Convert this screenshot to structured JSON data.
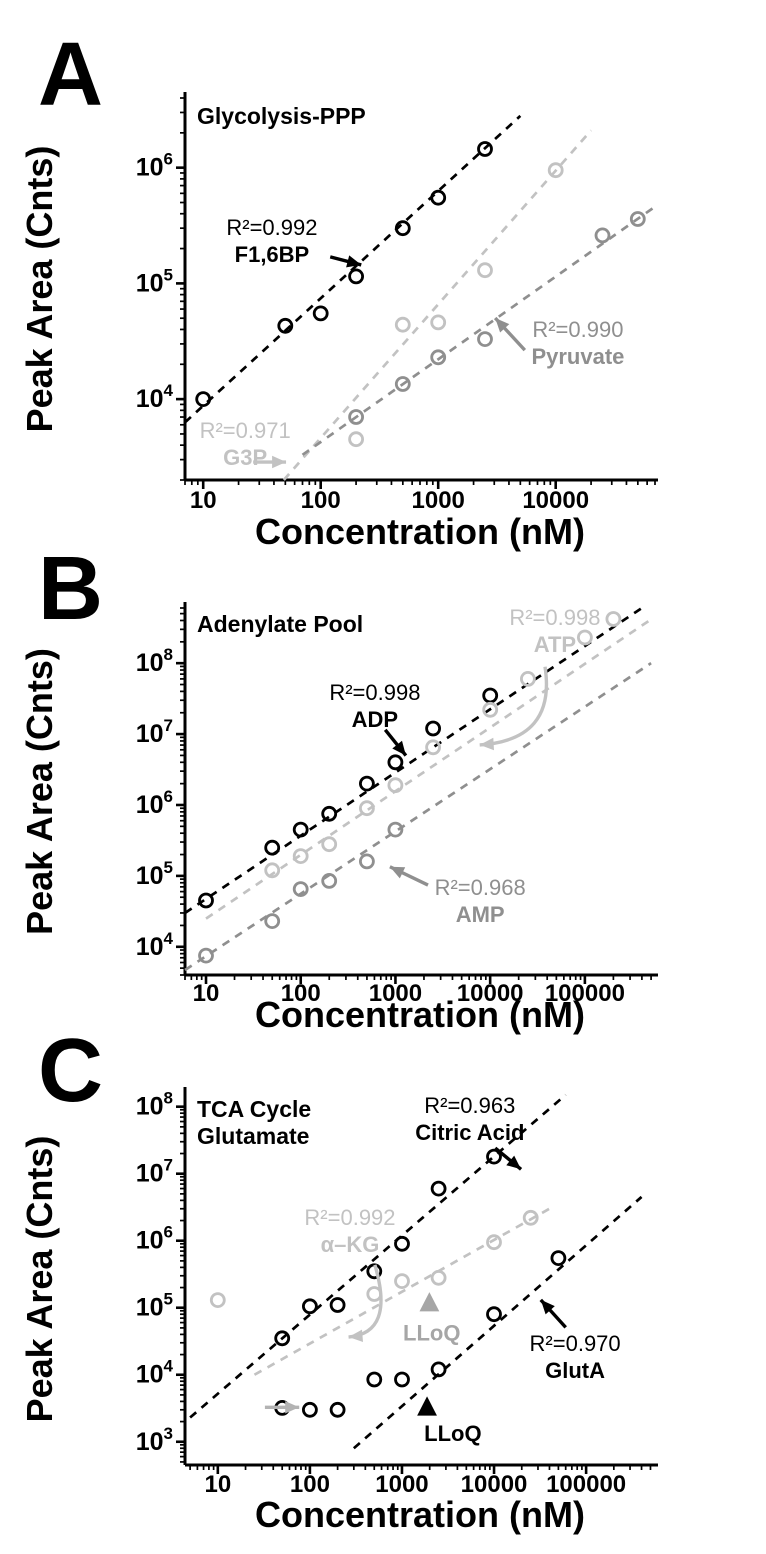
{
  "figure": {
    "background": "#ffffff",
    "colors": {
      "black": "#000000",
      "light_gray": "#c2c2c2",
      "mid_gray": "#8f8f8f",
      "lloq_gray": "#a6a6a6"
    }
  },
  "chart_data": [
    {
      "type": "scatter",
      "label": "A",
      "title_lines": [
        "Glycolysis-PPP"
      ],
      "xlabel": "Concentration (nM)",
      "ylabel": "Peak Area (Cnts)",
      "x_axis": {
        "scale": "log",
        "min": 7,
        "max": 70000,
        "tick_values": [
          10,
          100,
          1000,
          10000
        ]
      },
      "y_axis": {
        "scale": "log",
        "min": 2000,
        "max": 4000000,
        "tick_values": [
          10000,
          100000,
          1000000
        ]
      },
      "series": [
        {
          "name": "F1,6BP",
          "r2": 0.992,
          "color": "#000000",
          "points": [
            [
              10,
              10000
            ],
            [
              50,
              43000
            ],
            [
              100,
              55000
            ],
            [
              200,
              115000
            ],
            [
              500,
              300000
            ],
            [
              1000,
              550000
            ],
            [
              2500,
              1450000
            ]
          ],
          "trend": [
            [
              7,
              6300
            ],
            [
              5000,
              2800000
            ]
          ]
        },
        {
          "name": "G3P",
          "r2": 0.971,
          "color": "#c2c2c2",
          "points": [
            [
              200,
              4500
            ],
            [
              500,
              44000
            ],
            [
              1000,
              46000
            ],
            [
              2500,
              130000
            ],
            [
              10000,
              950000
            ]
          ],
          "trend": [
            [
              40,
              1600
            ],
            [
              20000,
              2100000
            ]
          ]
        },
        {
          "name": "Pyruvate",
          "r2": 0.99,
          "color": "#8f8f8f",
          "points": [
            [
              200,
              7000
            ],
            [
              500,
              13500
            ],
            [
              1000,
              23000
            ],
            [
              2500,
              33000
            ],
            [
              25000,
              260000
            ],
            [
              50000,
              360000
            ]
          ],
          "trend": [
            [
              70,
              3300
            ],
            [
              70000,
              460000
            ]
          ]
        }
      ],
      "annotations": [
        {
          "lines": [
            "R²=0.992",
            "F1,6BP"
          ],
          "color": "#000000",
          "fx": 0.185,
          "fy": 0.359,
          "arrow": {
            "from": [
              0.309,
              0.416
            ],
            "to": [
              0.375,
              0.437
            ]
          }
        },
        {
          "lines": [
            "R²=0.990",
            "Pyruvate"
          ],
          "color": "#8f8f8f",
          "fx": 0.836,
          "fy": 0.626,
          "arrow": {
            "from": [
              0.723,
              0.66
            ],
            "to": [
              0.66,
              0.576
            ]
          }
        },
        {
          "lines": [
            "R²=0.971",
            "G3P"
          ],
          "color": "#c2c2c2",
          "fx": 0.128,
          "fy": 0.89,
          "arrow": {
            "from": [
              0.145,
              0.953
            ],
            "to": [
              0.215,
              0.953
            ]
          }
        }
      ],
      "markers": []
    },
    {
      "type": "scatter",
      "label": "B",
      "title_lines": [
        "Adenylate Pool"
      ],
      "xlabel": "Concentration (nM)",
      "ylabel": "Peak Area (Cnts)",
      "x_axis": {
        "scale": "log",
        "min": 6,
        "max": 550000,
        "tick_values": [
          10,
          100,
          1000,
          10000,
          100000
        ]
      },
      "y_axis": {
        "scale": "log",
        "min": 4000,
        "max": 600000000,
        "tick_values": [
          10000,
          100000,
          1000000,
          10000000,
          100000000
        ]
      },
      "series": [
        {
          "name": "ADP",
          "r2": 0.998,
          "color": "#000000",
          "points": [
            [
              10,
              45000
            ],
            [
              50,
              250000
            ],
            [
              100,
              450000
            ],
            [
              200,
              750000
            ],
            [
              500,
              2000000
            ],
            [
              1000,
              4000000
            ],
            [
              2500,
              12000000
            ],
            [
              10000,
              35000000
            ]
          ],
          "trend": [
            [
              6,
              30000
            ],
            [
              400000,
              600000000
            ]
          ]
        },
        {
          "name": "ATP",
          "r2": 0.998,
          "color": "#c2c2c2",
          "points": [
            [
              50,
              120000
            ],
            [
              100,
              190000
            ],
            [
              200,
              280000
            ],
            [
              500,
              900000
            ],
            [
              1000,
              1900000
            ],
            [
              2500,
              6500000
            ],
            [
              10000,
              22000000
            ],
            [
              25000,
              60000000
            ],
            [
              100000,
              230000000
            ],
            [
              200000,
              420000000
            ]
          ],
          "trend": [
            [
              10,
              25000
            ],
            [
              480000,
              400000000
            ]
          ]
        },
        {
          "name": "AMP",
          "r2": 0.968,
          "color": "#8f8f8f",
          "points": [
            [
              10,
              7500
            ],
            [
              50,
              23000
            ],
            [
              100,
              65000
            ],
            [
              200,
              85000
            ],
            [
              500,
              160000
            ],
            [
              1000,
              450000
            ]
          ],
          "trend": [
            [
              6,
              4700
            ],
            [
              500000,
              100000000
            ]
          ]
        }
      ],
      "annotations": [
        {
          "lines": [
            "R²=0.998",
            "ATP"
          ],
          "color": "#c2c2c2",
          "fx": 0.787,
          "fy": 0.046,
          "arrow": {
            "from": [
              0.766,
              0.16
            ],
            "via": [
              0.79,
              0.36
            ],
            "to": [
              0.627,
              0.373
            ]
          }
        },
        {
          "lines": [
            "R²=0.998",
            "ADP"
          ],
          "color": "#000000",
          "fx": 0.404,
          "fy": 0.251,
          "arrow": {
            "from": [
              0.426,
              0.332
            ],
            "to": [
              0.47,
              0.402
            ]
          }
        },
        {
          "lines": [
            "R²=0.968",
            "AMP"
          ],
          "color": "#8f8f8f",
          "fx": 0.628,
          "fy": 0.782,
          "arrow": {
            "from": [
              0.517,
              0.755
            ],
            "to": [
              0.436,
              0.705
            ]
          }
        }
      ],
      "markers": []
    },
    {
      "type": "scatter",
      "label": "C",
      "title_lines": [
        "TCA Cycle",
        "Glutamate"
      ],
      "xlabel": "Concentration (nM)",
      "ylabel": "Peak Area (Cnts)",
      "x_axis": {
        "scale": "log",
        "min": 4.4,
        "max": 560000,
        "tick_values": [
          10,
          100,
          1000,
          10000,
          100000
        ]
      },
      "y_axis": {
        "scale": "log",
        "min": 450,
        "max": 160000000,
        "tick_values": [
          1000,
          10000,
          100000,
          1000000,
          10000000,
          100000000
        ]
      },
      "series": [
        {
          "name": "Citric Acid",
          "r2": 0.963,
          "color": "#000000",
          "points": [
            [
              50,
              35000
            ],
            [
              100,
              105000
            ],
            [
              200,
              110000
            ],
            [
              500,
              350000
            ],
            [
              1000,
              900000
            ],
            [
              2500,
              6000000
            ],
            [
              10000,
              18000000
            ]
          ],
          "trend": [
            [
              5,
              2300
            ],
            [
              60000,
              150000000
            ]
          ]
        },
        {
          "name": "α–KG",
          "r2": 0.992,
          "color": "#c2c2c2",
          "points": [
            [
              10,
              130000
            ],
            [
              500,
              160000
            ],
            [
              1000,
              250000
            ],
            [
              2500,
              280000
            ],
            [
              10000,
              950000
            ],
            [
              25000,
              2200000
            ]
          ],
          "trend": [
            [
              25,
              10000
            ],
            [
              40000,
              3000000
            ]
          ]
        },
        {
          "name": "GlutA",
          "r2": 0.97,
          "color": "#000000",
          "points": [
            [
              50,
              3200
            ],
            [
              100,
              3000
            ],
            [
              200,
              3000
            ],
            [
              500,
              8500
            ],
            [
              1000,
              8500
            ],
            [
              2500,
              12000
            ],
            [
              10000,
              80000
            ],
            [
              50000,
              550000
            ]
          ],
          "trend": [
            [
              300,
              800
            ],
            [
              400000,
              4500000
            ]
          ]
        }
      ],
      "annotations": [
        {
          "lines": [
            "R²=0.963",
            "Citric Acid"
          ],
          "color": "#000000",
          "fx": 0.606,
          "fy": 0.054,
          "arrow": {
            "from": [
              0.66,
              0.148
            ],
            "to": [
              0.715,
              0.205
            ]
          }
        },
        {
          "lines": [
            "R²=0.992",
            "α–KG"
          ],
          "color": "#c2c2c2",
          "fx": 0.351,
          "fy": 0.355,
          "arrow": {
            "from": [
              0.404,
              0.462
            ],
            "via": [
              0.447,
              0.645
            ],
            "to": [
              0.348,
              0.656
            ]
          }
        },
        {
          "lines": [
            "LLoQ"
          ],
          "color": "#a6a6a6",
          "fx": 0.525,
          "fy": 0.665
        },
        {
          "lines": [
            "R²=0.970",
            "GlutA"
          ],
          "color": "#000000",
          "fx": 0.83,
          "fy": 0.694,
          "arrow": {
            "from": [
              0.81,
              0.63
            ],
            "to": [
              0.757,
              0.556
            ]
          }
        },
        {
          "lines": [
            "LLoQ"
          ],
          "color": "#000000",
          "fx": 0.57,
          "fy": 0.935
        },
        {
          "lines": [],
          "color": "#b3b3b3",
          "fx": 0.2,
          "fy": 0.845,
          "arrow": {
            "from": [
              0.17,
              0.845
            ],
            "to": [
              0.243,
              0.845
            ]
          }
        }
      ],
      "markers": [
        {
          "shape": "triangle-up",
          "color": "#a6a6a6",
          "fx": 0.52,
          "fy": 0.565,
          "size": 11
        },
        {
          "shape": "triangle-up",
          "color": "#000000",
          "fx": 0.515,
          "fy": 0.845,
          "size": 11
        }
      ]
    }
  ]
}
